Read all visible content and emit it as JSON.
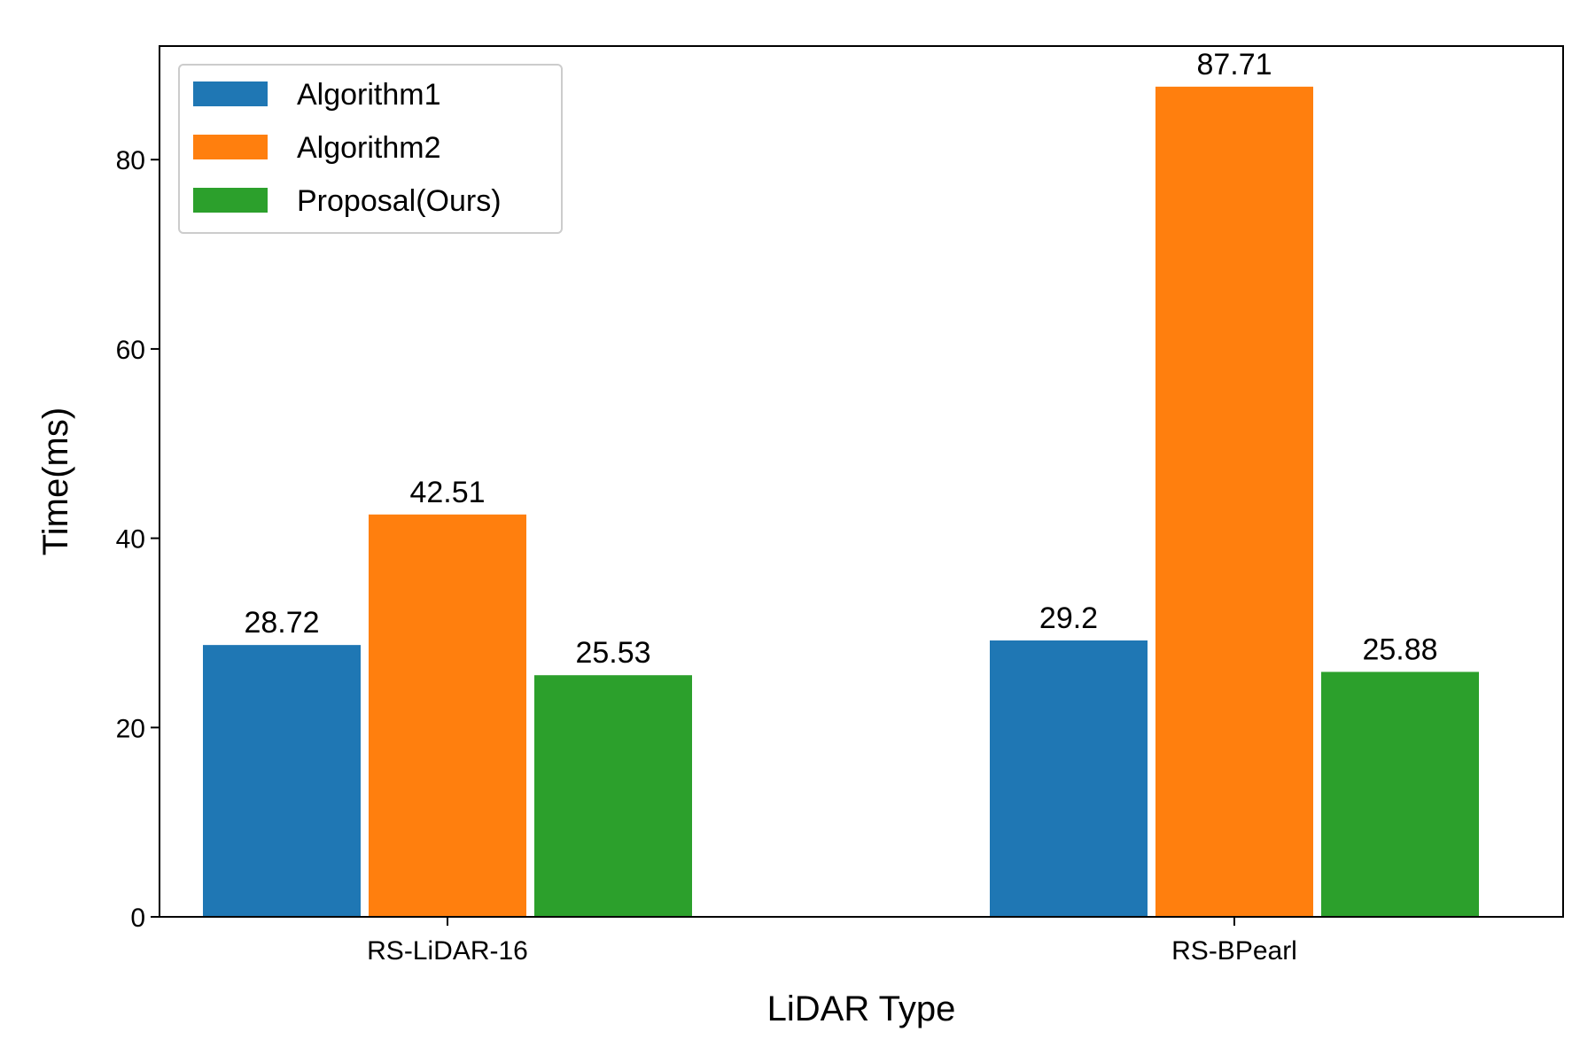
{
  "chart_data": {
    "type": "bar",
    "title": "",
    "xlabel": "LiDAR Type",
    "ylabel": "Time(ms)",
    "categories": [
      "RS-LiDAR-16",
      "RS-BPearl"
    ],
    "series": [
      {
        "name": "Algorithm1",
        "color": "#1f77b4",
        "values": [
          28.72,
          29.2
        ],
        "labels": [
          "28.72",
          "29.2"
        ]
      },
      {
        "name": "Algorithm2",
        "color": "#ff7f0e",
        "values": [
          42.51,
          87.71
        ],
        "labels": [
          "42.51",
          "87.71"
        ]
      },
      {
        "name": "Proposal(Ours)",
        "color": "#2ca02c",
        "values": [
          25.53,
          25.88
        ],
        "labels": [
          "25.53",
          "25.88"
        ]
      }
    ],
    "ylim": [
      0,
      92
    ],
    "yticks": [
      0,
      20,
      40,
      60,
      80
    ],
    "grid": false,
    "legend_position": "upper-left"
  }
}
